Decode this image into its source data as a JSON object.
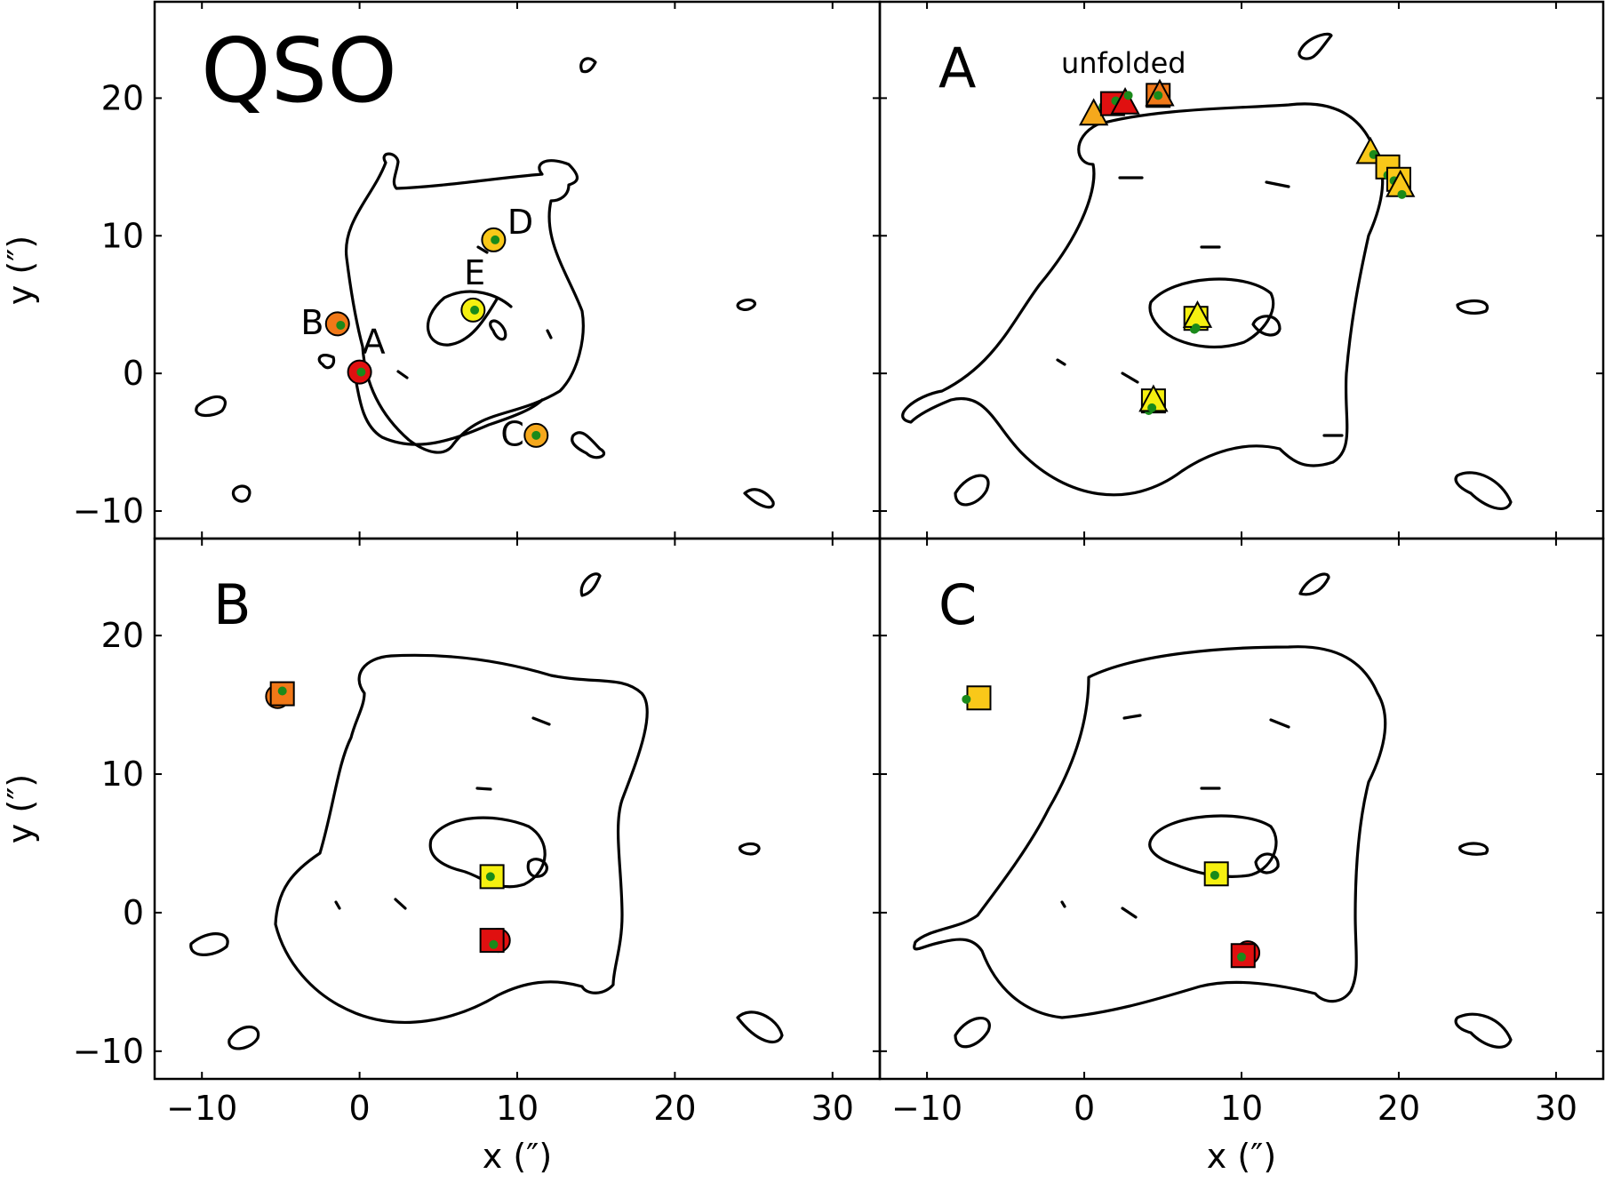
{
  "chart_data": {
    "type": "scatter",
    "figure": "Lensing critical curves with QSO images and host-galaxy source positions",
    "x_label": "x (″)",
    "y_label": "y (″)",
    "xlim": [
      -13,
      33
    ],
    "ylim": [
      -12,
      27
    ],
    "x_ticks": [
      -10,
      0,
      10,
      20,
      30
    ],
    "y_ticks": [
      -10,
      0,
      10,
      20
    ],
    "tick_labels": {
      "x": [
        "−10",
        "0",
        "10",
        "20",
        "30"
      ],
      "y": [
        "−10",
        "0",
        "10",
        "20"
      ]
    },
    "colors": {
      "red": "#e01010",
      "orange": "#f07818",
      "amber": "#f5a81c",
      "gold": "#f9c819",
      "yellow": "#f5f010",
      "green_dot": "#1a8a1a"
    },
    "panels": [
      {
        "id": "qso",
        "title": "QSO",
        "subtitle": "",
        "points": [
          {
            "label": "A",
            "marker": "circle",
            "color": "red",
            "x": 0.0,
            "y": 0.1,
            "dot": [
              0.1,
              0.1
            ]
          },
          {
            "label": "B",
            "marker": "circle",
            "color": "orange",
            "x": -1.4,
            "y": 3.6,
            "dot": [
              -1.2,
              3.5
            ]
          },
          {
            "label": "C",
            "marker": "circle",
            "color": "amber",
            "x": 11.2,
            "y": -4.5,
            "dot": [
              11.2,
              -4.5
            ]
          },
          {
            "label": "D",
            "marker": "circle",
            "color": "gold",
            "x": 8.5,
            "y": 9.7,
            "dot": [
              8.6,
              9.7
            ]
          },
          {
            "label": "E",
            "marker": "circle",
            "color": "yellow",
            "x": 7.2,
            "y": 4.6,
            "dot": [
              7.3,
              4.6
            ]
          }
        ],
        "annotations": [
          {
            "text": "A",
            "x": 0.9,
            "y": 2.3
          },
          {
            "text": "B",
            "x": -3.0,
            "y": 3.7
          },
          {
            "text": "C",
            "x": 9.7,
            "y": -4.4
          },
          {
            "text": "D",
            "x": 10.2,
            "y": 11.0
          },
          {
            "text": "E",
            "x": 7.3,
            "y": 7.3
          }
        ]
      },
      {
        "id": "A",
        "title": "A",
        "subtitle": "unfolded",
        "points": [
          {
            "marker": "triangle",
            "color": "amber",
            "x": 0.6,
            "y": 18.9,
            "dot": [
              1.2,
              19.4
            ]
          },
          {
            "marker": "square",
            "color": "red",
            "x": 1.8,
            "y": 19.6,
            "dot": [
              2.0,
              19.8
            ]
          },
          {
            "marker": "triangle",
            "color": "red",
            "x": 2.6,
            "y": 19.7,
            "dot": [
              2.8,
              20.2
            ]
          },
          {
            "marker": "square",
            "color": "orange",
            "x": 4.7,
            "y": 20.2,
            "dot": [
              4.6,
              20.3
            ]
          },
          {
            "marker": "triangle",
            "color": "orange",
            "x": 4.8,
            "y": 20.3,
            "dot": [
              4.7,
              20.2
            ]
          },
          {
            "marker": "triangle",
            "color": "gold",
            "x": 18.2,
            "y": 16.1,
            "dot": [
              18.4,
              15.9
            ]
          },
          {
            "marker": "square",
            "color": "gold",
            "x": 19.3,
            "y": 15.0,
            "dot": [
              19.3,
              14.4
            ]
          },
          {
            "marker": "square",
            "color": "gold",
            "x": 20.0,
            "y": 14.1,
            "dot": [
              19.7,
              14.0
            ]
          },
          {
            "marker": "triangle",
            "color": "gold",
            "x": 20.1,
            "y": 13.7,
            "dot": [
              20.2,
              13.0
            ]
          },
          {
            "marker": "square",
            "color": "yellow",
            "x": 7.1,
            "y": 4.0,
            "dot": [
              7.0,
              3.2
            ]
          },
          {
            "marker": "triangle",
            "color": "yellow",
            "x": 7.2,
            "y": 4.2,
            "dot": [
              7.1,
              3.3
            ]
          },
          {
            "marker": "square",
            "color": "yellow",
            "x": 4.4,
            "y": -2.0,
            "dot": [
              4.1,
              -2.7
            ]
          },
          {
            "marker": "triangle",
            "color": "yellow",
            "x": 4.4,
            "y": -1.9,
            "dot": [
              4.3,
              -2.5
            ]
          }
        ],
        "annotations": []
      },
      {
        "id": "B",
        "title": "B",
        "subtitle": "",
        "points": [
          {
            "marker": "circle",
            "color": "orange",
            "x": -5.2,
            "y": 15.6,
            "dot": [
              -5.0,
              15.9
            ]
          },
          {
            "marker": "square",
            "color": "orange",
            "x": -4.9,
            "y": 15.8,
            "dot": [
              -4.9,
              16.0
            ]
          },
          {
            "marker": "square",
            "color": "yellow",
            "x": 8.4,
            "y": 2.6,
            "dot": [
              8.3,
              2.6
            ]
          },
          {
            "marker": "circle",
            "color": "red",
            "x": 8.8,
            "y": -2.0,
            "dot": [
              8.7,
              -2.2
            ]
          },
          {
            "marker": "square",
            "color": "red",
            "x": 8.4,
            "y": -2.0,
            "dot": [
              8.5,
              -2.3
            ]
          }
        ],
        "annotations": []
      },
      {
        "id": "C",
        "title": "C",
        "subtitle": "",
        "points": [
          {
            "marker": "square",
            "color": "gold",
            "x": -6.7,
            "y": 15.5,
            "dot": [
              -7.5,
              15.4
            ]
          },
          {
            "marker": "square",
            "color": "yellow",
            "x": 8.4,
            "y": 2.8,
            "dot": [
              8.3,
              2.7
            ]
          },
          {
            "marker": "circle",
            "color": "red",
            "x": 10.4,
            "y": -2.9,
            "dot": [
              10.2,
              -3.1
            ]
          },
          {
            "marker": "square",
            "color": "red",
            "x": 10.1,
            "y": -3.1,
            "dot": [
              10.0,
              -3.2
            ]
          }
        ],
        "annotations": []
      }
    ]
  }
}
